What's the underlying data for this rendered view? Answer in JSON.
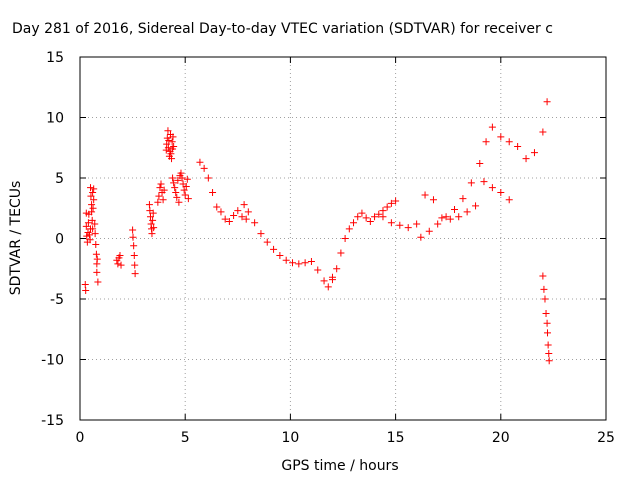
{
  "chart_data": {
    "type": "scatter",
    "title": "Day 281 of 2016, Sidereal Day-to-day VTEC variation (SDTVAR) for receiver c",
    "xlabel": "GPS time / hours",
    "ylabel": "SDTVAR / TECUs",
    "xlim": [
      0,
      25
    ],
    "ylim": [
      -15,
      15
    ],
    "x_ticks": [
      0,
      5,
      10,
      15,
      20,
      25
    ],
    "y_ticks": [
      -15,
      -10,
      -5,
      0,
      5,
      10,
      15
    ],
    "x_tick_labels": [
      "0",
      "5",
      "10",
      "15",
      "20",
      "25"
    ],
    "y_tick_labels": [
      "-15",
      "-10",
      "-5",
      "0",
      "5",
      "10",
      "15"
    ],
    "grid": true,
    "marker": "+",
    "color": "#ff0000",
    "clusters": [
      {
        "x": [
          0.25,
          0.27
        ],
        "y": [
          -3.8,
          -4.3
        ]
      },
      {
        "x": [
          0.3,
          0.3,
          0.32,
          0.35,
          0.38,
          0.4,
          0.42,
          0.45,
          0.48,
          0.5
        ],
        "y": [
          2.1,
          1.0,
          0.2,
          -0.3,
          0.5,
          1.3,
          2.0,
          0.3,
          -0.1,
          0.8
        ]
      },
      {
        "x": [
          0.5,
          0.52,
          0.55,
          0.55,
          0.58,
          0.6,
          0.6,
          0.62,
          0.65,
          0.65
        ],
        "y": [
          4.2,
          3.5,
          2.8,
          2.2,
          1.5,
          3.8,
          0.8,
          2.5,
          4.1,
          3.2
        ]
      },
      {
        "x": [
          0.7,
          0.72,
          0.75,
          0.78,
          0.8,
          0.8,
          0.82,
          0.85
        ],
        "y": [
          1.2,
          0.4,
          -0.5,
          -1.3,
          -2.1,
          -2.8,
          -1.7,
          -3.6
        ]
      },
      {
        "x": [
          1.75,
          1.8,
          1.85,
          1.9,
          1.95
        ],
        "y": [
          -1.8,
          -2.1,
          -1.6,
          -1.4,
          -2.2
        ]
      },
      {
        "x": [
          2.5,
          2.52,
          2.55,
          2.58,
          2.6,
          2.62
        ],
        "y": [
          0.7,
          0.1,
          -0.6,
          -1.4,
          -2.2,
          -2.9
        ]
      },
      {
        "x": [
          3.3,
          3.32,
          3.35,
          3.38,
          3.4,
          3.42,
          3.45,
          3.48,
          3.5
        ],
        "y": [
          2.8,
          2.3,
          1.8,
          1.2,
          0.8,
          0.4,
          1.5,
          2.1,
          0.9
        ]
      },
      {
        "x": [
          3.7,
          3.75,
          3.8,
          3.85,
          3.9,
          3.95,
          4.0
        ],
        "y": [
          3.0,
          3.5,
          4.2,
          4.5,
          3.8,
          3.2,
          4.0
        ]
      },
      {
        "x": [
          4.1,
          4.12,
          4.15,
          4.18,
          4.2,
          4.22,
          4.25,
          4.28,
          4.3,
          4.32,
          4.35,
          4.38,
          4.4,
          4.42,
          4.45
        ],
        "y": [
          7.3,
          7.8,
          8.3,
          8.9,
          7.5,
          8.1,
          6.8,
          7.2,
          8.6,
          7.0,
          6.6,
          8.0,
          7.4,
          8.4,
          7.6
        ]
      },
      {
        "x": [
          4.4,
          4.45,
          4.5,
          4.55,
          4.6,
          4.65,
          4.7,
          4.75
        ],
        "y": [
          5.0,
          4.6,
          4.2,
          3.8,
          3.4,
          4.8,
          3.0,
          5.2
        ]
      },
      {
        "x": [
          4.8,
          4.85,
          4.9,
          4.95,
          5.0,
          5.05,
          5.1,
          5.15
        ],
        "y": [
          5.4,
          5.0,
          4.5,
          4.0,
          3.6,
          4.3,
          4.9,
          3.3
        ]
      },
      {
        "x": [
          5.7,
          5.9,
          6.1,
          6.3,
          6.5,
          6.7,
          6.9,
          7.1,
          7.3,
          7.5,
          7.7,
          7.9
        ],
        "y": [
          6.3,
          5.8,
          5.0,
          3.8,
          2.6,
          2.2,
          1.6,
          1.4,
          1.9,
          2.3,
          1.8,
          1.6
        ]
      },
      {
        "x": [
          7.8,
          8.0,
          8.3,
          8.6,
          8.9,
          9.2,
          9.5,
          9.8,
          10.1,
          10.4,
          10.7,
          11.0,
          11.3,
          11.6,
          11.8,
          12.0
        ],
        "y": [
          2.8,
          2.2,
          1.3,
          0.4,
          -0.3,
          -0.9,
          -1.4,
          -1.8,
          -2.0,
          -2.1,
          -2.0,
          -1.9,
          -2.6,
          -3.5,
          -4.0,
          -3.4
        ]
      },
      {
        "x": [
          12.0,
          12.2,
          12.4,
          12.6,
          12.8,
          13.0,
          13.2,
          13.4,
          13.6,
          13.8,
          14.0,
          14.2,
          14.4,
          14.6,
          14.8,
          15.0
        ],
        "y": [
          -3.2,
          -2.5,
          -1.2,
          0.0,
          0.8,
          1.3,
          1.8,
          2.1,
          1.7,
          1.4,
          1.8,
          2.0,
          2.3,
          2.6,
          2.9,
          3.1
        ]
      },
      {
        "x": [
          14.4,
          14.8,
          15.2,
          15.6,
          16.0,
          16.4,
          16.8,
          17.2,
          17.6,
          18.0,
          18.4,
          18.8,
          19.2,
          19.6,
          20.0,
          20.4
        ],
        "y": [
          1.8,
          1.3,
          1.1,
          0.9,
          1.2,
          3.6,
          3.2,
          1.7,
          1.6,
          1.8,
          2.2,
          2.7,
          4.7,
          4.2,
          3.8,
          3.2
        ]
      },
      {
        "x": [
          16.2,
          16.6,
          17.0,
          17.4,
          17.8,
          18.2,
          18.6,
          19.0,
          19.3,
          19.6,
          20.0,
          20.4,
          20.8,
          21.2,
          21.6,
          22.0,
          22.2
        ],
        "y": [
          0.1,
          0.6,
          1.2,
          1.8,
          2.4,
          3.3,
          4.6,
          6.2,
          8.0,
          9.2,
          8.4,
          8.0,
          7.6,
          6.6,
          7.1,
          8.8,
          11.3
        ]
      },
      {
        "x": [
          22.0,
          22.05,
          22.1,
          22.15,
          22.2,
          22.22,
          22.25,
          22.28,
          22.3
        ],
        "y": [
          -3.1,
          -4.2,
          -5.0,
          -6.2,
          -7.0,
          -7.8,
          -8.8,
          -9.5,
          -10.1
        ]
      }
    ]
  }
}
